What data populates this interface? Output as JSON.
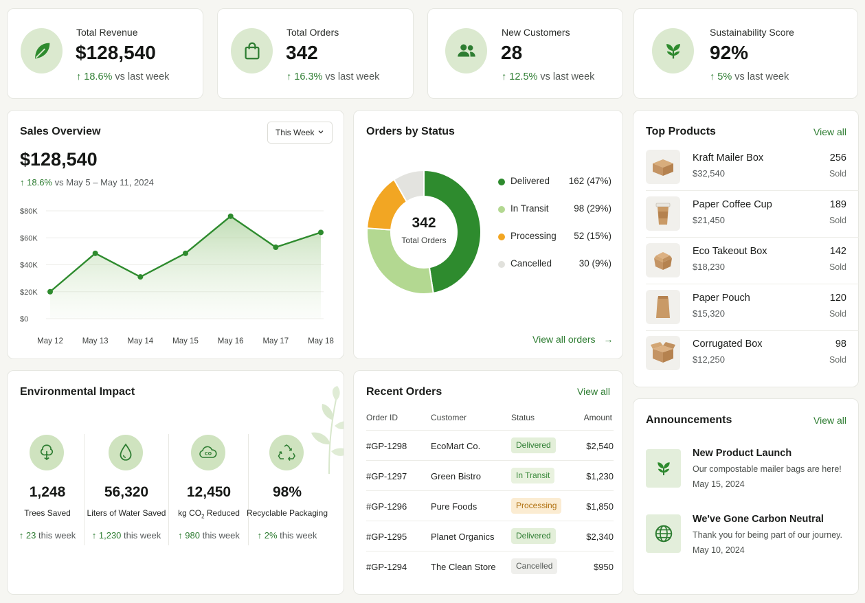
{
  "colors": {
    "accent": "#2e7d32",
    "accent_light": "#a8d08d",
    "orange": "#f2a623",
    "grey": "#e1e1dc"
  },
  "kpis": [
    {
      "icon": "leaf-icon",
      "label": "Total Revenue",
      "value": "$128,540",
      "change": "18.6%",
      "vs": "vs last week"
    },
    {
      "icon": "shopping-bag-icon",
      "label": "Total Orders",
      "value": "342",
      "change": "16.3%",
      "vs": "vs last week"
    },
    {
      "icon": "users-icon",
      "label": "New Customers",
      "value": "28",
      "change": "12.5%",
      "vs": "vs last week"
    },
    {
      "icon": "sprout-icon",
      "label": "Sustainability Score",
      "value": "92%",
      "change": "5%",
      "vs": "vs last week"
    }
  ],
  "sales": {
    "title": "Sales Overview",
    "period": "This Week",
    "value": "$128,540",
    "change": "18.6%",
    "range": "vs May 5 – May 11, 2024"
  },
  "chart_data": {
    "type": "area",
    "title": "Sales Overview",
    "categories": [
      "May 12",
      "May 13",
      "May 14",
      "May 15",
      "May 16",
      "May 17",
      "May 18"
    ],
    "values": [
      20000,
      48500,
      31000,
      48500,
      76000,
      53000,
      64000
    ],
    "yticks": [
      "$0",
      "$20K",
      "$40K",
      "$60K",
      "$80K"
    ],
    "ylim": [
      0,
      80000
    ],
    "grid": true
  },
  "orders_status": {
    "title": "Orders by Status",
    "total": "342",
    "total_label": "Total Orders",
    "items": [
      {
        "label": "Delivered",
        "count": "162",
        "pct": "(47%)",
        "value": 162,
        "color": "#2e8b2e"
      },
      {
        "label": "In Transit",
        "count": "98",
        "pct": "(29%)",
        "value": 98,
        "color": "#b3d891"
      },
      {
        "label": "Processing",
        "count": "52",
        "pct": "(15%)",
        "value": 52,
        "color": "#f2a623"
      },
      {
        "label": "Cancelled",
        "count": "30",
        "pct": "(9%)",
        "value": 30,
        "color": "#e3e3df"
      }
    ],
    "view_all": "View all orders"
  },
  "top_products": {
    "title": "Top Products",
    "view_all": "View all",
    "items": [
      {
        "name": "Kraft Mailer Box",
        "price": "$32,540",
        "qty": "256",
        "sold": "Sold"
      },
      {
        "name": "Paper Coffee Cup",
        "price": "$21,450",
        "qty": "189",
        "sold": "Sold"
      },
      {
        "name": "Eco Takeout Box",
        "price": "$18,230",
        "qty": "142",
        "sold": "Sold"
      },
      {
        "name": "Paper Pouch",
        "price": "$15,320",
        "qty": "120",
        "sold": "Sold"
      },
      {
        "name": "Corrugated Box",
        "price": "$12,250",
        "qty": "98",
        "sold": "Sold"
      }
    ]
  },
  "environment": {
    "title": "Environmental Impact",
    "items": [
      {
        "icon": "tree-icon",
        "value": "1,248",
        "label": "Trees Saved",
        "change": "23",
        "suffix": "this week"
      },
      {
        "icon": "water-drop-icon",
        "value": "56,320",
        "label": "Liters of Water Saved",
        "change": "1,230",
        "suffix": "this week"
      },
      {
        "icon": "co2-cloud-icon",
        "value": "12,450",
        "label_pre": "kg CO",
        "label_sub": "2",
        "label_post": " Reduced",
        "change": "980",
        "suffix": "this week"
      },
      {
        "icon": "recycle-icon",
        "value": "98%",
        "label": "Recyclable Packaging",
        "change": "2%",
        "suffix": "this week"
      }
    ]
  },
  "recent_orders": {
    "title": "Recent Orders",
    "view_all": "View all",
    "columns": [
      "Order ID",
      "Customer",
      "Status",
      "Amount"
    ],
    "rows": [
      {
        "id": "#GP-1298",
        "customer": "EcoMart Co.",
        "status": "Delivered",
        "amount": "$2,540"
      },
      {
        "id": "#GP-1297",
        "customer": "Green Bistro",
        "status": "In Transit",
        "amount": "$1,230"
      },
      {
        "id": "#GP-1296",
        "customer": "Pure Foods",
        "status": "Processing",
        "amount": "$1,850"
      },
      {
        "id": "#GP-1295",
        "customer": "Planet Organics",
        "status": "Delivered",
        "amount": "$2,340"
      },
      {
        "id": "#GP-1294",
        "customer": "The Clean Store",
        "status": "Cancelled",
        "amount": "$950"
      }
    ]
  },
  "announcements": {
    "title": "Announcements",
    "view_all": "View all",
    "items": [
      {
        "icon": "sprout-icon",
        "title": "New Product Launch",
        "text": "Our compostable mailer bags are here!",
        "date": "May 15, 2024"
      },
      {
        "icon": "globe-icon",
        "title": "We've Gone Carbon Neutral",
        "text": "Thank you for being part of our journey.",
        "date": "May 10, 2024"
      }
    ]
  }
}
